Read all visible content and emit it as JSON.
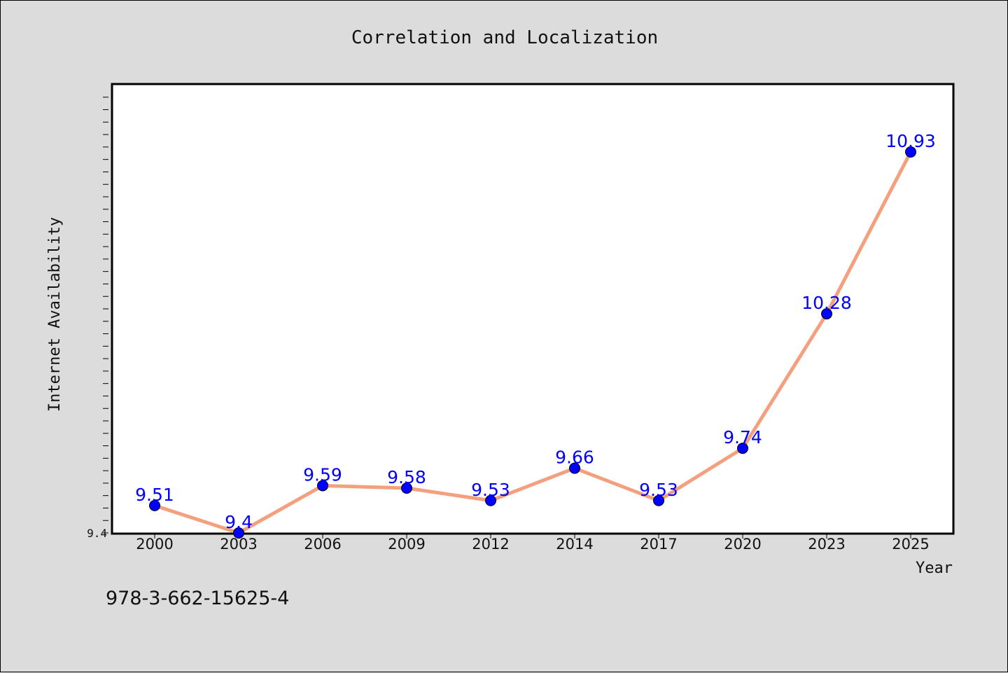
{
  "chart_data": {
    "type": "line",
    "title": "Correlation and Localization",
    "xlabel": "Year",
    "ylabel": "Internet Availability",
    "categories": [
      "2000",
      "2003",
      "2006",
      "2009",
      "2012",
      "2014",
      "2017",
      "2020",
      "2023",
      "2025"
    ],
    "series": [
      {
        "values": [
          9.51,
          9.4,
          9.59,
          9.58,
          9.53,
          9.66,
          9.53,
          9.74,
          10.28,
          10.93
        ]
      }
    ],
    "data_labels": [
      "9.51",
      "9.4",
      "9.59",
      "9.58",
      "9.53",
      "9.66",
      "9.53",
      "9.74",
      "10.28",
      "10.93"
    ],
    "ylim": [
      9.4,
      11.2
    ],
    "yticks_labeled": [
      "9.4"
    ],
    "grid": false,
    "line_color": "#f4a07e",
    "marker_color": "#0000ff",
    "label_color": "#0000ff"
  },
  "footnote": "978-3-662-15625-4"
}
